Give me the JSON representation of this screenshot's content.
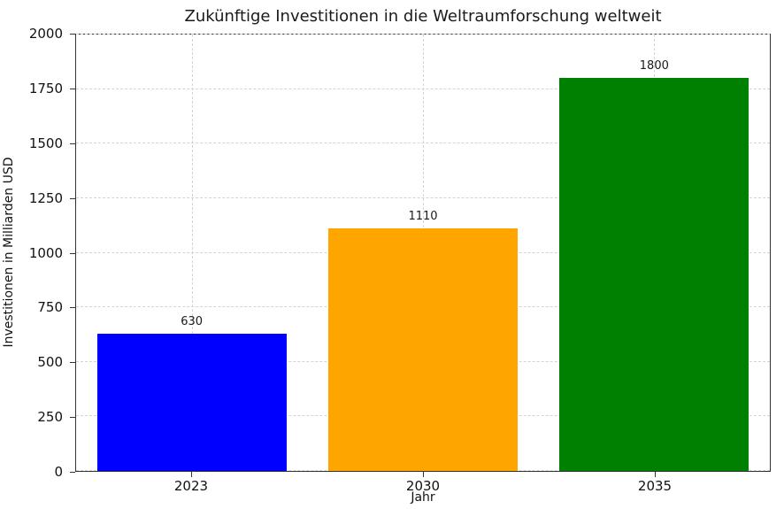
{
  "chart_data": {
    "type": "bar",
    "title": "Zukünftige Investitionen in die Weltraumforschung weltweit",
    "xlabel": "Jahr",
    "ylabel": "Investitionen in Milliarden USD",
    "categories": [
      "2023",
      "2030",
      "2035"
    ],
    "values": [
      630,
      1110,
      1800
    ],
    "value_labels": [
      "630",
      "1110",
      "1800"
    ],
    "bar_colors": [
      "#0000ff",
      "#ffa500",
      "#008000"
    ],
    "bar_width_fraction": 0.82,
    "ylim": [
      0,
      2000
    ],
    "yticks": [
      0,
      250,
      500,
      750,
      1000,
      1250,
      1500,
      1750,
      2000
    ],
    "grid": "dashed",
    "grid_color": "#d4d4d4",
    "legend": "none",
    "background_color": "#ffffff"
  }
}
